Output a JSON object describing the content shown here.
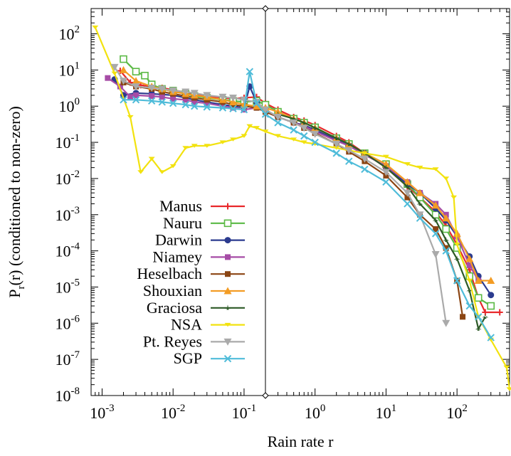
{
  "chart_data": {
    "type": "line",
    "title": "",
    "xlabel": "Rain rate r",
    "ylabel_main": "P",
    "ylabel_sub": "r",
    "ylabel_rest": "(r) (conditioned to non-zero)",
    "x_scale": "log",
    "y_scale": "log",
    "xlim": [
      0.0007,
      550
    ],
    "ylim": [
      1e-08,
      500
    ],
    "x_ticks": [
      {
        "base": "10",
        "exp": "-3",
        "value": 0.001
      },
      {
        "base": "10",
        "exp": "-2",
        "value": 0.01
      },
      {
        "base": "10",
        "exp": "-1",
        "value": 0.1
      },
      {
        "base": "10",
        "exp": "0",
        "value": 1
      },
      {
        "base": "10",
        "exp": "1",
        "value": 10
      },
      {
        "base": "10",
        "exp": "2",
        "value": 100
      }
    ],
    "y_ticks": [
      {
        "base": "10",
        "exp": "2",
        "value": 100
      },
      {
        "base": "10",
        "exp": "1",
        "value": 10
      },
      {
        "base": "10",
        "exp": "0",
        "value": 1
      },
      {
        "base": "10",
        "exp": "-1",
        "value": 0.1
      },
      {
        "base": "10",
        "exp": "-2",
        "value": 0.01
      },
      {
        "base": "10",
        "exp": "-3",
        "value": 0.001
      },
      {
        "base": "10",
        "exp": "-4",
        "value": 0.0001
      },
      {
        "base": "10",
        "exp": "-5",
        "value": 1e-05
      },
      {
        "base": "10",
        "exp": "-6",
        "value": 1e-06
      },
      {
        "base": "10",
        "exp": "-7",
        "value": 1e-07
      },
      {
        "base": "10",
        "exp": "-8",
        "value": 1e-08
      }
    ],
    "vertical_line_x": 0.2,
    "grid": false,
    "legend_position": "left",
    "series": [
      {
        "name": "Manus",
        "color": "#e8282b",
        "marker": "plus",
        "points": [
          [
            0.0018,
            9.5
          ],
          [
            0.0025,
            4.5
          ],
          [
            0.0035,
            3.8
          ],
          [
            0.005,
            3.5
          ],
          [
            0.007,
            3.2
          ],
          [
            0.01,
            2.8
          ],
          [
            0.015,
            2.4
          ],
          [
            0.02,
            2.1
          ],
          [
            0.03,
            1.9
          ],
          [
            0.05,
            1.7
          ],
          [
            0.07,
            1.6
          ],
          [
            0.1,
            1.7
          ],
          [
            0.15,
            1.8
          ],
          [
            0.2,
            1.2
          ],
          [
            0.3,
            0.8
          ],
          [
            0.5,
            0.5
          ],
          [
            0.7,
            0.4
          ],
          [
            1,
            0.3
          ],
          [
            2,
            0.15
          ],
          [
            3,
            0.1
          ],
          [
            5,
            0.05
          ],
          [
            10,
            0.02
          ],
          [
            20,
            0.006
          ],
          [
            30,
            0.003
          ],
          [
            50,
            0.0012
          ],
          [
            70,
            0.0005
          ],
          [
            100,
            0.00015
          ],
          [
            150,
            3e-05
          ],
          [
            200,
            5e-06
          ],
          [
            250,
            2e-06
          ],
          [
            400,
            2e-06
          ]
        ]
      },
      {
        "name": "Nauru",
        "color": "#5ab944",
        "marker": "square-open",
        "points": [
          [
            0.002,
            20
          ],
          [
            0.003,
            9
          ],
          [
            0.004,
            7
          ],
          [
            0.005,
            4
          ],
          [
            0.007,
            3
          ],
          [
            0.01,
            2.7
          ],
          [
            0.015,
            2.2
          ],
          [
            0.02,
            1.9
          ],
          [
            0.03,
            1.7
          ],
          [
            0.05,
            1.5
          ],
          [
            0.07,
            1.4
          ],
          [
            0.1,
            1.3
          ],
          [
            0.15,
            1.4
          ],
          [
            0.2,
            1.1
          ],
          [
            0.3,
            0.7
          ],
          [
            0.5,
            0.45
          ],
          [
            0.7,
            0.35
          ],
          [
            1,
            0.26
          ],
          [
            2,
            0.13
          ],
          [
            3,
            0.09
          ],
          [
            5,
            0.05
          ],
          [
            10,
            0.025
          ],
          [
            20,
            0.007
          ],
          [
            30,
            0.003
          ],
          [
            50,
            0.001
          ],
          [
            70,
            0.0004
          ],
          [
            100,
            0.00012
          ],
          [
            150,
            2e-05
          ],
          [
            200,
            5e-06
          ],
          [
            300,
            3e-06
          ]
        ]
      },
      {
        "name": "Darwin",
        "color": "#2b3b8f",
        "marker": "circle",
        "points": [
          [
            0.0015,
            5.5
          ],
          [
            0.002,
            2
          ],
          [
            0.003,
            2.3
          ],
          [
            0.005,
            2.2
          ],
          [
            0.007,
            2.1
          ],
          [
            0.01,
            2
          ],
          [
            0.015,
            1.7
          ],
          [
            0.02,
            1.5
          ],
          [
            0.03,
            1.3
          ],
          [
            0.05,
            1.1
          ],
          [
            0.07,
            1
          ],
          [
            0.1,
            0.9
          ],
          [
            0.12,
            3.5
          ],
          [
            0.15,
            1.3
          ],
          [
            0.2,
            0.8
          ],
          [
            0.3,
            0.5
          ],
          [
            0.5,
            0.35
          ],
          [
            0.7,
            0.3
          ],
          [
            1,
            0.22
          ],
          [
            2,
            0.12
          ],
          [
            3,
            0.08
          ],
          [
            5,
            0.05
          ],
          [
            10,
            0.02
          ],
          [
            20,
            0.007
          ],
          [
            30,
            0.004
          ],
          [
            50,
            0.0015
          ],
          [
            70,
            0.0007
          ],
          [
            100,
            0.00025
          ],
          [
            150,
            7e-05
          ],
          [
            200,
            2e-05
          ],
          [
            300,
            6e-06
          ]
        ]
      },
      {
        "name": "Niamey",
        "color": "#a64ca6",
        "marker": "square",
        "points": [
          [
            0.0012,
            6
          ],
          [
            0.0018,
            3.5
          ],
          [
            0.0025,
            1.8
          ],
          [
            0.003,
            2
          ],
          [
            0.005,
            1.9
          ],
          [
            0.007,
            1.8
          ],
          [
            0.01,
            1.6
          ],
          [
            0.015,
            1.5
          ],
          [
            0.02,
            1.3
          ],
          [
            0.03,
            1.2
          ],
          [
            0.05,
            1
          ],
          [
            0.07,
            0.9
          ],
          [
            0.1,
            0.8
          ],
          [
            0.15,
            0.9
          ],
          [
            0.2,
            0.7
          ],
          [
            0.3,
            0.5
          ],
          [
            0.5,
            0.35
          ],
          [
            0.7,
            0.28
          ],
          [
            1,
            0.2
          ],
          [
            2,
            0.11
          ],
          [
            3,
            0.08
          ],
          [
            5,
            0.045
          ],
          [
            10,
            0.022
          ],
          [
            20,
            0.008
          ],
          [
            30,
            0.004
          ],
          [
            50,
            0.002
          ],
          [
            70,
            0.001
          ],
          [
            100,
            0.00025
          ],
          [
            150,
            4e-05
          ],
          [
            200,
            1.5e-05
          ]
        ]
      },
      {
        "name": "Heselbach",
        "color": "#8b4513",
        "marker": "square",
        "points": [
          [
            0.002,
            4.5
          ],
          [
            0.003,
            3.5
          ],
          [
            0.005,
            3
          ],
          [
            0.007,
            2.5
          ],
          [
            0.01,
            2.2
          ],
          [
            0.015,
            1.9
          ],
          [
            0.02,
            1.7
          ],
          [
            0.03,
            1.5
          ],
          [
            0.05,
            1.3
          ],
          [
            0.07,
            1.1
          ],
          [
            0.1,
            1
          ],
          [
            0.15,
            0.9
          ],
          [
            0.2,
            0.7
          ],
          [
            0.3,
            0.5
          ],
          [
            0.5,
            0.35
          ],
          [
            0.7,
            0.25
          ],
          [
            1,
            0.18
          ],
          [
            2,
            0.09
          ],
          [
            3,
            0.055
          ],
          [
            5,
            0.03
          ],
          [
            10,
            0.012
          ],
          [
            20,
            0.003
          ],
          [
            30,
            0.001
          ],
          [
            50,
            0.0004
          ],
          [
            70,
            0.00012
          ],
          [
            100,
            1.5e-05
          ],
          [
            120,
            1.5e-06
          ]
        ]
      },
      {
        "name": "Shouxian",
        "color": "#f39c24",
        "marker": "triangle",
        "points": [
          [
            0.002,
            10
          ],
          [
            0.003,
            5
          ],
          [
            0.005,
            3.5
          ],
          [
            0.007,
            3
          ],
          [
            0.01,
            2.5
          ],
          [
            0.015,
            2.2
          ],
          [
            0.02,
            2
          ],
          [
            0.03,
            1.8
          ],
          [
            0.05,
            1.5
          ],
          [
            0.07,
            1.3
          ],
          [
            0.1,
            1.1
          ],
          [
            0.15,
            1
          ],
          [
            0.2,
            0.9
          ],
          [
            0.3,
            0.7
          ],
          [
            0.5,
            0.45
          ],
          [
            0.7,
            0.35
          ],
          [
            1,
            0.25
          ],
          [
            2,
            0.13
          ],
          [
            3,
            0.09
          ],
          [
            5,
            0.05
          ],
          [
            10,
            0.025
          ],
          [
            20,
            0.008
          ],
          [
            30,
            0.004
          ],
          [
            50,
            0.0018
          ],
          [
            70,
            0.0008
          ],
          [
            100,
            0.0003
          ],
          [
            150,
            6e-05
          ],
          [
            200,
            1.5e-05
          ],
          [
            300,
            1.5e-05
          ]
        ]
      },
      {
        "name": "Graciosa",
        "color": "#2d5a27",
        "marker": "star",
        "points": [
          [
            0.3,
            0.6
          ],
          [
            0.5,
            0.45
          ],
          [
            0.7,
            0.35
          ],
          [
            1,
            0.25
          ],
          [
            2,
            0.13
          ],
          [
            3,
            0.09
          ],
          [
            5,
            0.05
          ],
          [
            10,
            0.02
          ],
          [
            20,
            0.006
          ],
          [
            30,
            0.002
          ],
          [
            50,
            0.0007
          ],
          [
            70,
            0.0002
          ],
          [
            100,
            6e-05
          ],
          [
            150,
            8e-06
          ],
          [
            200,
            7e-07
          ],
          [
            250,
            1.5e-06
          ]
        ]
      },
      {
        "name": "NSA",
        "color": "#f2e20f",
        "marker": "bar",
        "points": [
          [
            0.0008,
            150
          ],
          [
            0.0015,
            8
          ],
          [
            0.0025,
            0.5
          ],
          [
            0.0035,
            0.015
          ],
          [
            0.005,
            0.035
          ],
          [
            0.007,
            0.015
          ],
          [
            0.01,
            0.022
          ],
          [
            0.015,
            0.07
          ],
          [
            0.02,
            0.08
          ],
          [
            0.03,
            0.08
          ],
          [
            0.05,
            0.1
          ],
          [
            0.07,
            0.12
          ],
          [
            0.1,
            0.15
          ],
          [
            0.12,
            0.28
          ],
          [
            0.15,
            0.25
          ],
          [
            0.2,
            0.2
          ],
          [
            0.3,
            0.15
          ],
          [
            0.5,
            0.12
          ],
          [
            0.7,
            0.1
          ],
          [
            1,
            0.09
          ],
          [
            2,
            0.07
          ],
          [
            3,
            0.06
          ],
          [
            5,
            0.05
          ],
          [
            10,
            0.04
          ],
          [
            20,
            0.025
          ],
          [
            30,
            0.02
          ],
          [
            50,
            0.018
          ],
          [
            70,
            0.01
          ],
          [
            90,
            0.003
          ],
          [
            100,
            0.00015
          ],
          [
            150,
            1.5e-05
          ],
          [
            200,
            1.5e-06
          ],
          [
            300,
            3.5e-07
          ],
          [
            500,
            6e-08
          ],
          [
            550,
            1.5e-08
          ]
        ]
      },
      {
        "name": "Pt. Reyes",
        "color": "#aaaaaa",
        "marker": "triangle-down",
        "points": [
          [
            0.0015,
            12
          ],
          [
            0.002,
            5
          ],
          [
            0.003,
            3.5
          ],
          [
            0.005,
            3.2
          ],
          [
            0.007,
            3
          ],
          [
            0.01,
            2.7
          ],
          [
            0.015,
            2.5
          ],
          [
            0.02,
            2.3
          ],
          [
            0.03,
            2
          ],
          [
            0.05,
            1.8
          ],
          [
            0.07,
            1.7
          ],
          [
            0.1,
            1.5
          ],
          [
            0.15,
            1.3
          ],
          [
            0.2,
            0.8
          ],
          [
            0.3,
            0.5
          ],
          [
            0.5,
            0.35
          ],
          [
            0.7,
            0.25
          ],
          [
            1,
            0.17
          ],
          [
            2,
            0.09
          ],
          [
            3,
            0.06
          ],
          [
            5,
            0.035
          ],
          [
            10,
            0.015
          ],
          [
            20,
            0.004
          ],
          [
            30,
            0.001
          ],
          [
            50,
            8e-05
          ],
          [
            70,
            1e-06
          ]
        ]
      },
      {
        "name": "SGP",
        "color": "#4fbcd9",
        "marker": "x",
        "points": [
          [
            0.002,
            1.5
          ],
          [
            0.003,
            1.5
          ],
          [
            0.005,
            1.4
          ],
          [
            0.007,
            1.3
          ],
          [
            0.01,
            1.2
          ],
          [
            0.015,
            1.1
          ],
          [
            0.02,
            1
          ],
          [
            0.03,
            0.95
          ],
          [
            0.05,
            0.9
          ],
          [
            0.07,
            0.85
          ],
          [
            0.1,
            0.8
          ],
          [
            0.12,
            9
          ],
          [
            0.15,
            1.2
          ],
          [
            0.2,
            0.6
          ],
          [
            0.3,
            0.35
          ],
          [
            0.5,
            0.22
          ],
          [
            0.7,
            0.15
          ],
          [
            1,
            0.1
          ],
          [
            2,
            0.05
          ],
          [
            3,
            0.03
          ],
          [
            5,
            0.018
          ],
          [
            10,
            0.008
          ],
          [
            20,
            0.002
          ],
          [
            30,
            0.0008
          ],
          [
            50,
            0.0003
          ],
          [
            70,
            0.0001
          ],
          [
            100,
            1.5e-05
          ],
          [
            150,
            3e-06
          ],
          [
            200,
            1.5e-06
          ],
          [
            300,
            4e-07
          ]
        ]
      }
    ]
  }
}
